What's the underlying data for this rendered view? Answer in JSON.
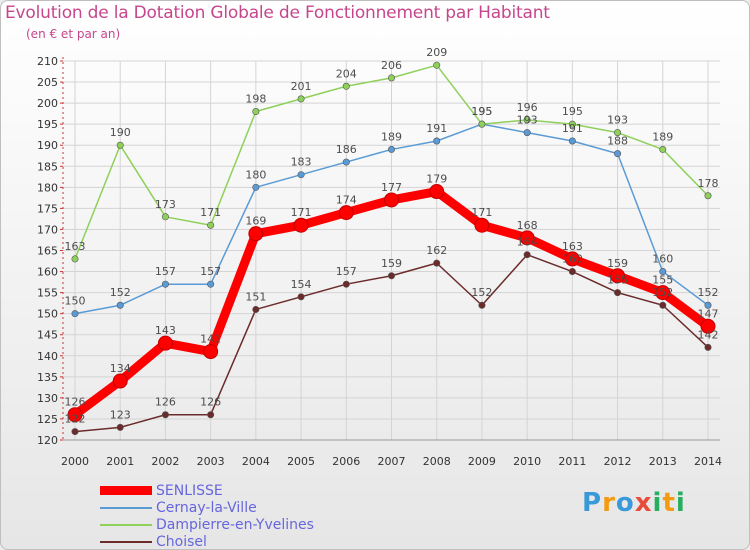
{
  "header": {
    "title": "Evolution de la Dotation Globale de Fonctionnement par Habitant",
    "subtitle": "(en € et par an)"
  },
  "chart_data": {
    "type": "line",
    "title": "Evolution de la Dotation Globale de Fonctionnement par Habitant",
    "subtitle": "(en € et par an)",
    "xlabel": "",
    "ylabel": "",
    "x": [
      "2000",
      "2001",
      "2002",
      "2003",
      "2004",
      "2005",
      "2006",
      "2007",
      "2008",
      "2009",
      "2010",
      "2011",
      "2012",
      "2013",
      "2014"
    ],
    "ylim": [
      120,
      210
    ],
    "yticks": [
      120,
      125,
      130,
      135,
      140,
      145,
      150,
      155,
      160,
      165,
      170,
      175,
      180,
      185,
      190,
      195,
      200,
      205,
      210
    ],
    "grid": true,
    "legend_position": "bottom-left",
    "series": [
      {
        "name": "SENLISSE",
        "color": "#ff0000",
        "values": [
          126,
          134,
          143,
          141,
          169,
          171,
          174,
          177,
          179,
          171,
          168,
          163,
          159,
          155,
          147
        ]
      },
      {
        "name": "Cernay-la-Ville",
        "color": "#5b9bd5",
        "values": [
          150,
          152,
          157,
          157,
          180,
          183,
          186,
          189,
          191,
          195,
          193,
          191,
          188,
          160,
          152
        ]
      },
      {
        "name": "Dampierre-en-Yvelines",
        "color": "#8ed05a",
        "values": [
          163,
          190,
          173,
          171,
          198,
          201,
          204,
          206,
          209,
          195,
          196,
          195,
          193,
          189,
          178
        ]
      },
      {
        "name": "Choisel",
        "color": "#6b2b2b",
        "values": [
          122,
          123,
          126,
          126,
          151,
          154,
          157,
          159,
          162,
          152,
          164,
          160,
          155,
          152,
          142
        ]
      }
    ]
  },
  "legend": [
    {
      "label": "SENLISSE",
      "color": "#ff0000"
    },
    {
      "label": "Cernay-la-Ville",
      "color": "#5b9bd5"
    },
    {
      "label": "Dampierre-en-Yvelines",
      "color": "#8ed05a"
    },
    {
      "label": "Choisel",
      "color": "#6b2b2b"
    }
  ],
  "logo": {
    "letters": [
      "P",
      "r",
      "o",
      "x",
      "i",
      "t",
      "i"
    ],
    "colors": [
      "#3a9ad9",
      "#f39c12",
      "#3a9ad9",
      "#e74c3c",
      "#27ae60",
      "#f39c12",
      "#27ae60"
    ]
  }
}
